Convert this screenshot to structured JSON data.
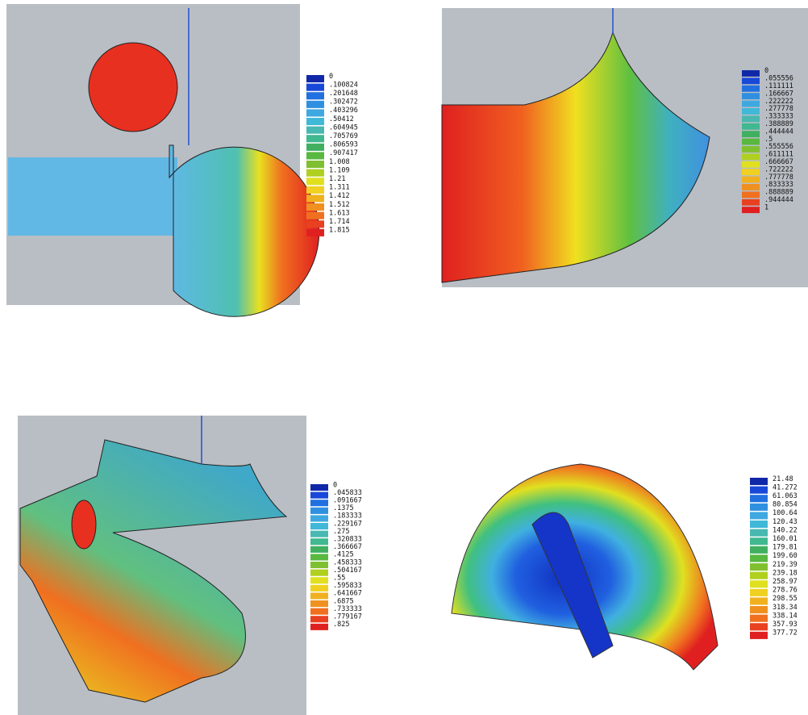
{
  "panels": [
    {
      "legend": [
        "0",
        ".100824",
        ".201648",
        ".302472",
        ".403296",
        ".50412",
        ".604945",
        ".705769",
        ".806593",
        ".907417",
        "1.008",
        "1.109",
        "1.21",
        "1.311",
        "1.412",
        "1.512",
        "1.613",
        "1.714",
        "1.815"
      ]
    },
    {
      "legend": [
        "0",
        ".055556",
        ".111111",
        ".166667",
        ".222222",
        ".277778",
        ".333333",
        ".388889",
        ".444444",
        ".5",
        ".555556",
        ".611111",
        ".666667",
        ".722222",
        ".777778",
        ".833333",
        ".888889",
        ".944444",
        "1"
      ]
    },
    {
      "legend": [
        "0",
        ".045833",
        ".091667",
        ".1375",
        ".183333",
        ".229167",
        ".275",
        ".320833",
        ".366667",
        ".4125",
        ".458333",
        ".504167",
        ".55",
        ".595833",
        ".641667",
        ".6875",
        ".733333",
        ".779167",
        ".825"
      ]
    },
    {
      "legend": [
        "21.48",
        "41.272",
        "61.063",
        "80.854",
        "100.64",
        "120.43",
        "140.22",
        "160.01",
        "179.81",
        "199.60",
        "219.39",
        "239.18",
        "258.97",
        "278.76",
        "298.55",
        "318.34",
        "338.14",
        "357.93",
        "377.72"
      ]
    }
  ]
}
